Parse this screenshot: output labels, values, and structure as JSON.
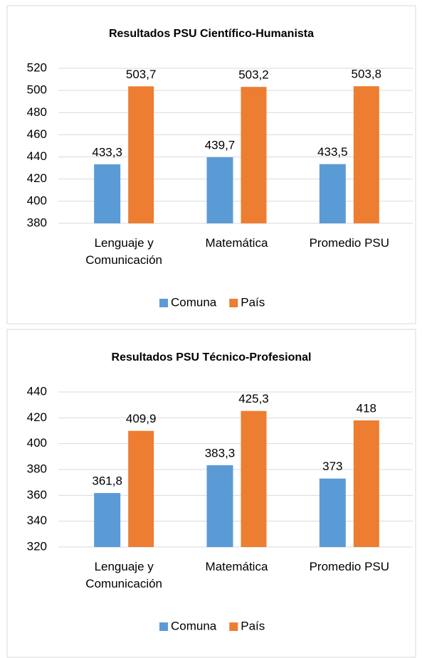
{
  "chart_data": [
    {
      "type": "bar",
      "title": "Resultados PSU Científico-Humanista",
      "categories": [
        "Lenguaje y Comunicación",
        "Matemática",
        "Promedio PSU"
      ],
      "series": [
        {
          "name": "Comuna",
          "color": "#5b9bd5",
          "values": [
            433.3,
            439.7,
            433.5
          ],
          "value_labels": [
            "433,3",
            "439,7",
            "433,5"
          ]
        },
        {
          "name": "País",
          "color": "#ed7d31",
          "values": [
            503.7,
            503.2,
            503.8
          ],
          "value_labels": [
            "503,7",
            "503,2",
            "503,8"
          ]
        }
      ],
      "ylim": [
        380,
        520
      ],
      "yticks": [
        380,
        400,
        420,
        440,
        460,
        480,
        500,
        520
      ],
      "grid": true,
      "legend": "bottom"
    },
    {
      "type": "bar",
      "title": "Resultados PSU Técnico-Profesional",
      "categories": [
        "Lenguaje y Comunicación",
        "Matemática",
        "Promedio PSU"
      ],
      "series": [
        {
          "name": "Comuna",
          "color": "#5b9bd5",
          "values": [
            361.8,
            383.3,
            373
          ],
          "value_labels": [
            "361,8",
            "383,3",
            "373"
          ]
        },
        {
          "name": "País",
          "color": "#ed7d31",
          "values": [
            409.9,
            425.3,
            418
          ],
          "value_labels": [
            "409,9",
            "425,3",
            "418"
          ]
        }
      ],
      "ylim": [
        320,
        440
      ],
      "yticks": [
        320,
        340,
        360,
        380,
        400,
        420,
        440
      ],
      "grid": true,
      "legend": "bottom"
    }
  ]
}
